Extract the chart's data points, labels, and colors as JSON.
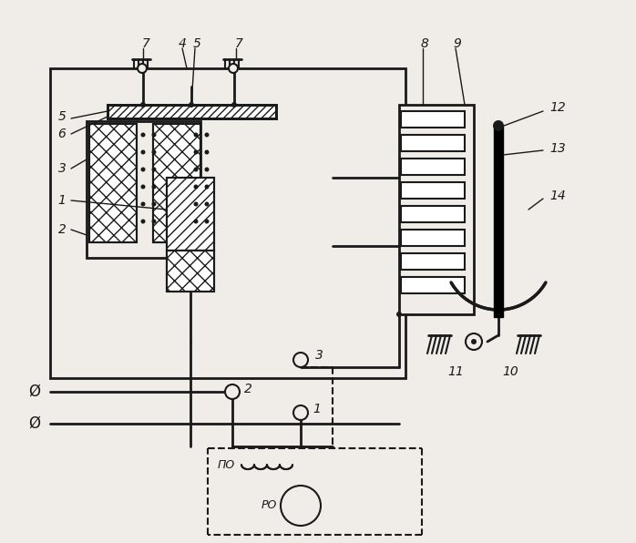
{
  "bg_color": "#f0ede8",
  "line_color": "#1a1a1a",
  "fig_width": 6.98,
  "fig_height": 5.96,
  "labels": {
    "7_left": "7",
    "4": "4",
    "5_top": "5",
    "7_right": "7",
    "8": "8",
    "9": "9",
    "5_left": "5",
    "6": "6",
    "3_left": "3",
    "1": "1",
    "2_left": "2",
    "12": "12",
    "13": "13",
    "14": "14",
    "3_terminal": "3",
    "2_terminal": "2",
    "1_terminal": "1",
    "11": "11",
    "10": "10",
    "PO": "ПО",
    "RO": "РО",
    "phi1": "Ø",
    "phi2": "Ø"
  }
}
